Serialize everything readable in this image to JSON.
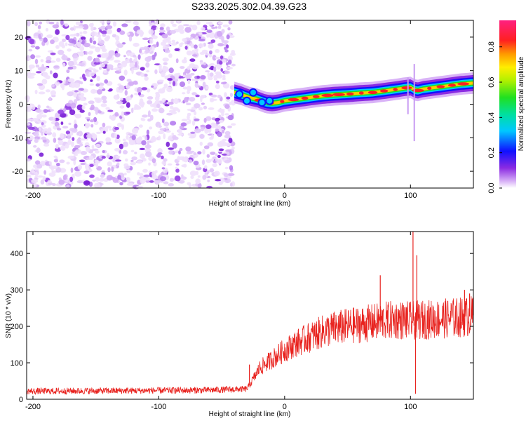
{
  "title": "S233.2025.302.04.39.G23",
  "colors": {
    "snr_line": "#e8221e",
    "noise": "#7a1fd6",
    "frame": "#000000"
  },
  "chart_data": [
    {
      "type": "heatmap",
      "xlabel": "Height of straight line (km)",
      "ylabel": "Frequency (Hz)",
      "xlim": [
        -205,
        150
      ],
      "ylim": [
        -25,
        25
      ],
      "xticks": [
        -200,
        -100,
        0,
        100
      ],
      "yticks": [
        -20,
        -10,
        0,
        10,
        20
      ],
      "xtick_labels": [
        "-200",
        "-100",
        "0",
        "100"
      ],
      "ytick_labels": [
        "-20",
        "-10",
        "0",
        "10",
        "20"
      ],
      "noise_region_x": [
        -205,
        -40
      ],
      "ridge": {
        "x": [
          -40,
          -35,
          -28,
          -22,
          -15,
          -10,
          -5,
          0,
          10,
          20,
          30,
          40,
          50,
          60,
          70,
          80,
          90,
          95,
          100,
          105,
          110,
          120,
          130,
          140,
          150
        ],
        "freq": [
          3.5,
          3.0,
          2.0,
          1.5,
          0.5,
          0.3,
          0.5,
          1.0,
          1.5,
          2.0,
          2.5,
          2.8,
          3.0,
          3.3,
          3.5,
          4.0,
          4.5,
          4.8,
          5.0,
          4.0,
          4.5,
          5.0,
          5.5,
          6.0,
          6.3
        ]
      },
      "colorbar": {
        "label": "Normalized spectral amplitude",
        "range": [
          0.0,
          0.95
        ],
        "ticks": [
          0.0,
          0.2,
          0.4,
          0.6,
          0.8
        ],
        "tick_labels": [
          "0.0",
          "0.2",
          "0.4",
          "0.6",
          "0.8"
        ]
      }
    },
    {
      "type": "line",
      "xlabel": "Height of straight line (km)",
      "ylabel": "SNR (10 * v/v)",
      "xlim": [
        -205,
        150
      ],
      "ylim": [
        0,
        460
      ],
      "xticks": [
        -200,
        -100,
        0,
        100
      ],
      "yticks": [
        0,
        100,
        200,
        300,
        400
      ],
      "xtick_labels": [
        "-200",
        "-100",
        "0",
        "100"
      ],
      "ytick_labels": [
        "0",
        "100",
        "200",
        "300",
        "400"
      ],
      "series": [
        {
          "name": "SNR",
          "trend_x": [
            -205,
            -150,
            -100,
            -60,
            -30,
            -25,
            -20,
            -10,
            0,
            10,
            20,
            30,
            40,
            50,
            60,
            70,
            80,
            90,
            100,
            110,
            120,
            130,
            140,
            150
          ],
          "trend_y": [
            22,
            23,
            24,
            25,
            28,
            55,
            85,
            110,
            135,
            155,
            170,
            185,
            195,
            200,
            205,
            210,
            215,
            218,
            215,
            218,
            220,
            222,
            225,
            228
          ],
          "spikes": [
            {
              "x": 76,
              "y": 340
            },
            {
              "x": 102,
              "y": 460
            },
            {
              "x": 105,
              "y": 395
            },
            {
              "x": 104,
              "y": 15
            },
            {
              "x": 143,
              "y": 300
            },
            {
              "x": 147,
              "y": 290
            },
            {
              "x": -28,
              "y": 95
            }
          ]
        }
      ]
    }
  ]
}
